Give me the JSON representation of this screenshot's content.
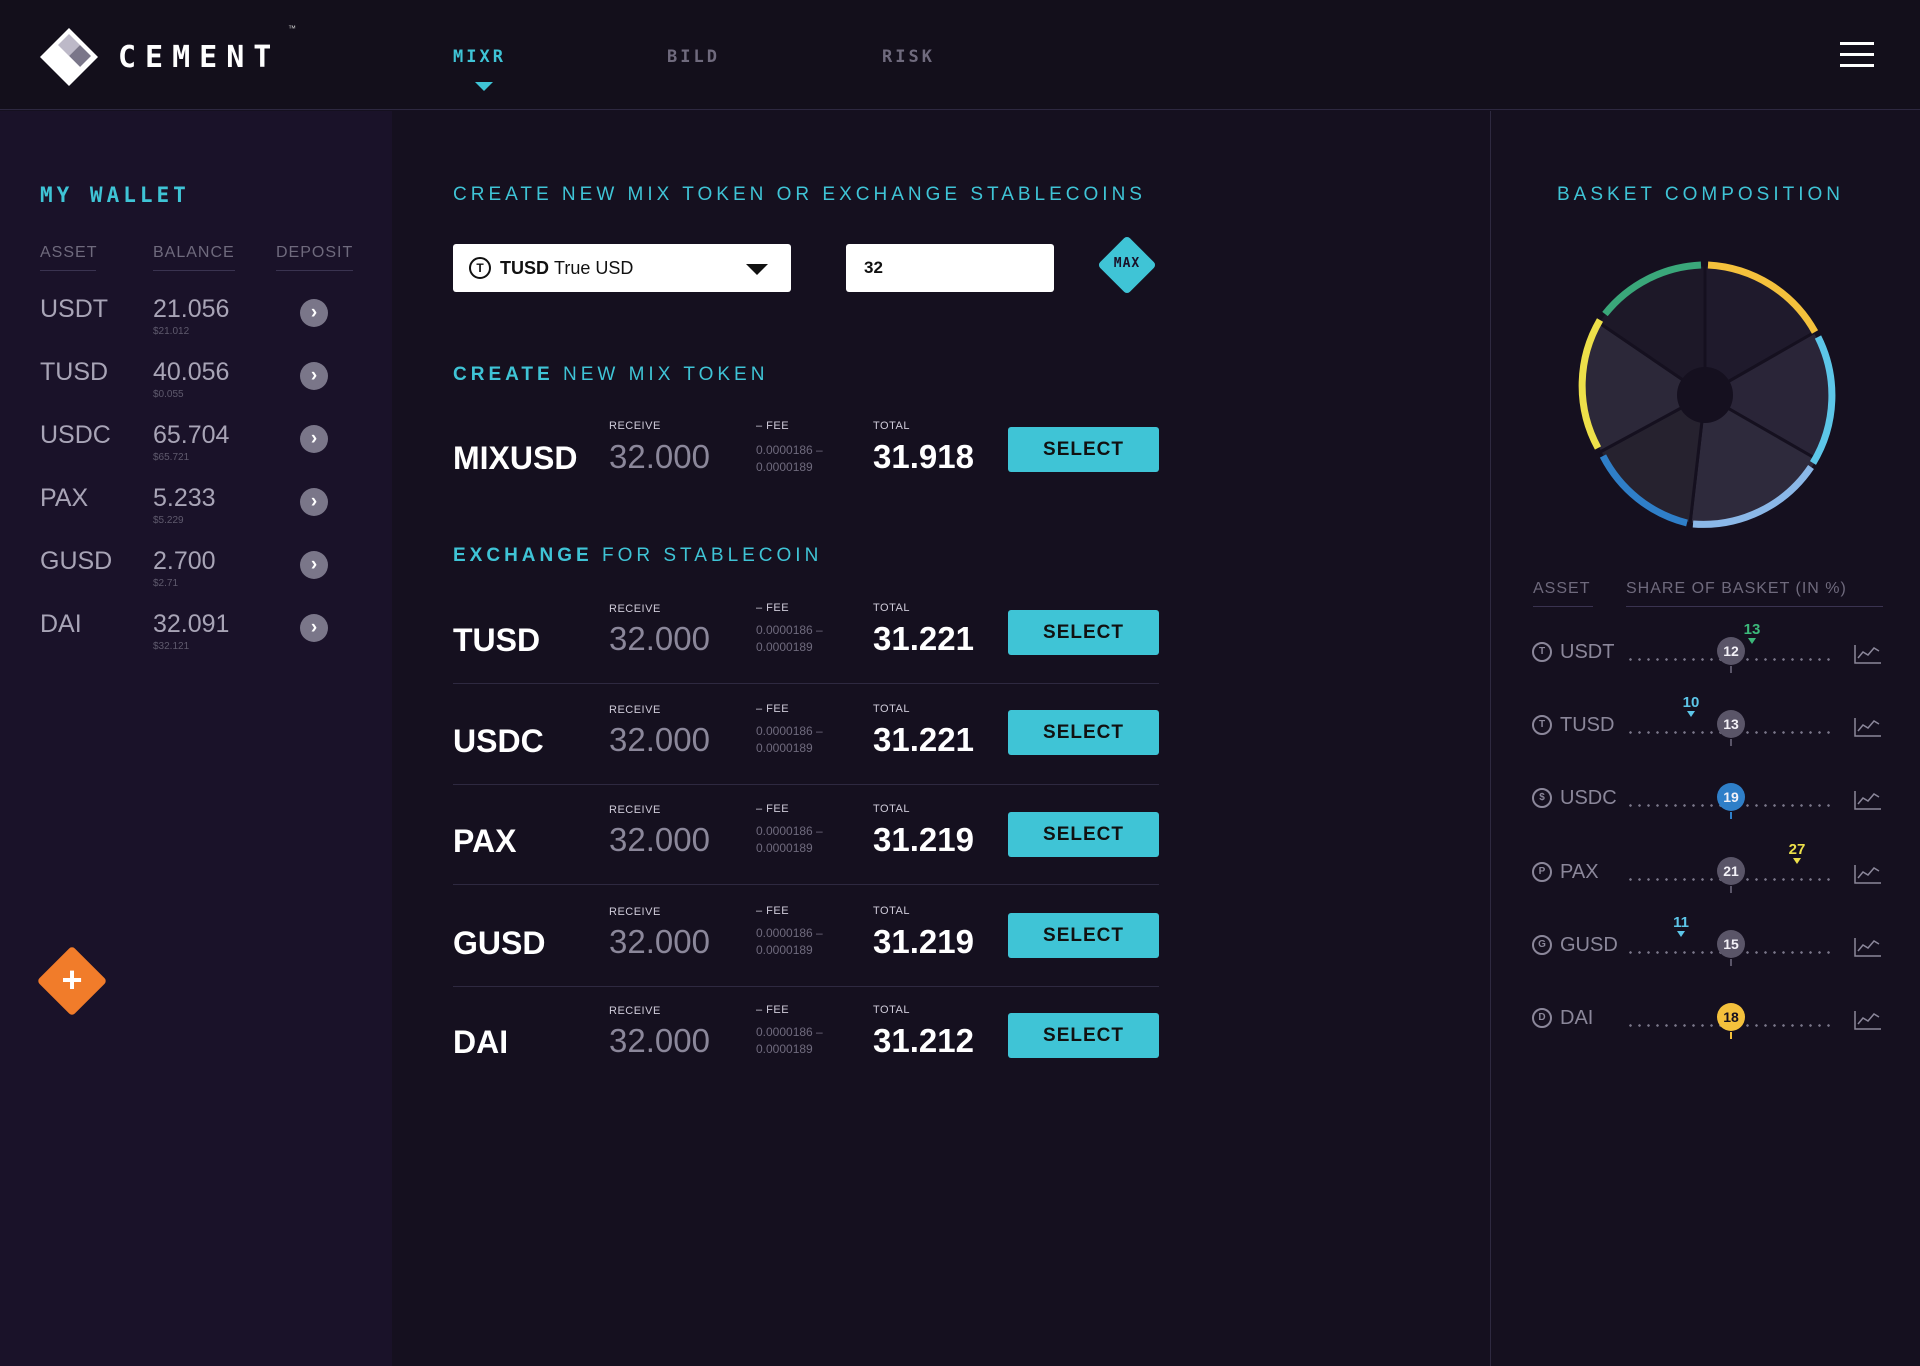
{
  "brand": {
    "name": "CEMENT",
    "tm": "™"
  },
  "nav": {
    "tabs": [
      {
        "label": "MIXR"
      },
      {
        "label": "BILD"
      },
      {
        "label": "RISK"
      }
    ]
  },
  "wallet": {
    "title": "MY WALLET",
    "columns": [
      "ASSET",
      "BALANCE",
      "DEPOSIT"
    ],
    "rows": [
      {
        "asset": "USDT",
        "balance": "21.056",
        "usd": "$21.012"
      },
      {
        "asset": "TUSD",
        "balance": "40.056",
        "usd": "$0.055"
      },
      {
        "asset": "USDC",
        "balance": "65.704",
        "usd": "$65.721"
      },
      {
        "asset": "PAX",
        "balance": "5.233",
        "usd": "$5.229"
      },
      {
        "asset": "GUSD",
        "balance": "2.700",
        "usd": "$2.71"
      },
      {
        "asset": "DAI",
        "balance": "32.091",
        "usd": "$32.121"
      }
    ],
    "deposit_icon": "chevron-right-icon",
    "add_icon": "plus-icon"
  },
  "main": {
    "header": "CREATE NEW MIX TOKEN OR EXCHANGE STABLECOINS",
    "token_select": {
      "code": "TUSD",
      "name": "True USD",
      "icon_letter": "T"
    },
    "amount": {
      "value": "32"
    },
    "max_label": "MAX",
    "create_section": {
      "bold": "CREATE",
      "rest": "NEW MIX TOKEN"
    },
    "exchange_section": {
      "bold": "EXCHANGE",
      "rest": "FOR STABLECOIN"
    },
    "labels": {
      "receive": "RECEIVE",
      "fee": "– FEE",
      "total": "TOTAL",
      "select": "SELECT"
    },
    "mix_row": {
      "name": "MIXUSD",
      "receive": "32.000",
      "fee1": "0.0000186 –",
      "fee2": "0.0000189",
      "total": "31.918"
    },
    "exchange_rows": [
      {
        "name": "TUSD",
        "receive": "32.000",
        "fee1": "0.0000186 –",
        "fee2": "0.0000189",
        "total": "31.221"
      },
      {
        "name": "USDC",
        "receive": "32.000",
        "fee1": "0.0000186 –",
        "fee2": "0.0000189",
        "total": "31.221"
      },
      {
        "name": "PAX",
        "receive": "32.000",
        "fee1": "0.0000186 –",
        "fee2": "0.0000189",
        "total": "31.219"
      },
      {
        "name": "GUSD",
        "receive": "32.000",
        "fee1": "0.0000186 –",
        "fee2": "0.0000189",
        "total": "31.219"
      },
      {
        "name": "DAI",
        "receive": "32.000",
        "fee1": "0.0000186 –",
        "fee2": "0.0000189",
        "total": "31.212"
      }
    ]
  },
  "basket": {
    "title": "BASKET COMPOSITION",
    "columns": [
      "ASSET",
      "SHARE OF BASKET (IN %)"
    ],
    "rows": [
      {
        "asset": "USDT",
        "icon": "T",
        "current": "12",
        "target": "13",
        "target_color": "#3cb87a",
        "marker_color": "#5a5568"
      },
      {
        "asset": "TUSD",
        "icon": "T",
        "current": "13",
        "target": "10",
        "target_color": "#5dc6e8",
        "marker_color": "#5a5568"
      },
      {
        "asset": "USDC",
        "icon": "$",
        "current": "19",
        "target": "",
        "target_color": "",
        "marker_color": "#2f7fc8"
      },
      {
        "asset": "PAX",
        "icon": "P",
        "current": "21",
        "target": "27",
        "target_color": "#ede04a",
        "marker_color": "#5a5568"
      },
      {
        "asset": "GUSD",
        "icon": "G",
        "current": "15",
        "target": "11",
        "target_color": "#5dc6e8",
        "marker_color": "#5a5568"
      },
      {
        "asset": "DAI",
        "icon": "D",
        "current": "18",
        "target": "",
        "target_color": "",
        "marker_color": "#f4c13c"
      }
    ],
    "donut_colors": [
      "#f4c13c",
      "#5dc6e8",
      "#8bb8e8",
      "#2f7fc8",
      "#ede04a",
      "#3aa77a"
    ]
  },
  "colors": {
    "accent": "#3fc4d6",
    "orange": "#f17c2a",
    "background": "#15101f",
    "sidebar": "#1a1229"
  }
}
